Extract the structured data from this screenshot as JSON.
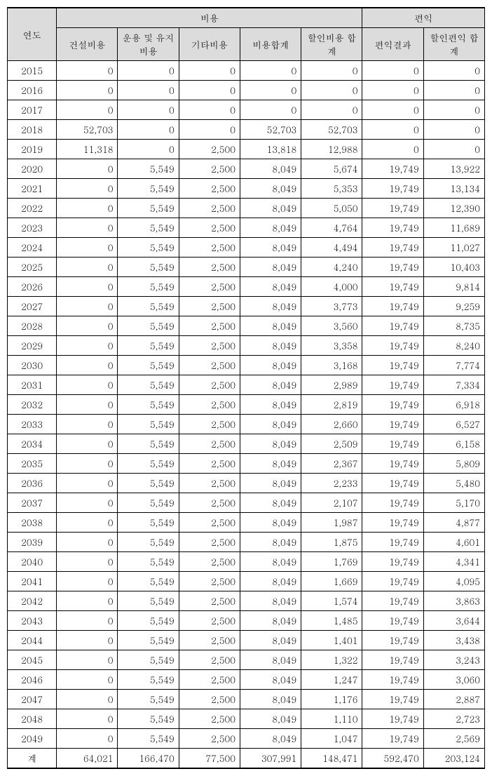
{
  "headers": {
    "year": "연도",
    "cost_group": "비용",
    "benefit_group": "편익",
    "construction": "건설비용",
    "operation": "운용 및 유지비용",
    "other": "기타비용",
    "cost_sum": "비용합계",
    "discount_cost": "할인비용 합계",
    "benefit_result": "편익결과",
    "discount_benefit": "할인편익 합계"
  },
  "rows": [
    {
      "year": "2015",
      "c1": "0",
      "c2": "0",
      "c3": "0",
      "c4": "0",
      "c5": "0",
      "c6": "0",
      "c7": "0"
    },
    {
      "year": "2016",
      "c1": "0",
      "c2": "0",
      "c3": "0",
      "c4": "0",
      "c5": "0",
      "c6": "0",
      "c7": "0"
    },
    {
      "year": "2017",
      "c1": "0",
      "c2": "0",
      "c3": "0",
      "c4": "0",
      "c5": "0",
      "c6": "0",
      "c7": "0"
    },
    {
      "year": "2018",
      "c1": "52,703",
      "c2": "0",
      "c3": "0",
      "c4": "52,703",
      "c5": "52,703",
      "c6": "0",
      "c7": "0"
    },
    {
      "year": "2019",
      "c1": "11,318",
      "c2": "0",
      "c3": "2,500",
      "c4": "13,818",
      "c5": "12,988",
      "c6": "0",
      "c7": "0"
    },
    {
      "year": "2020",
      "c1": "0",
      "c2": "5,549",
      "c3": "2,500",
      "c4": "8,049",
      "c5": "5,674",
      "c6": "19,749",
      "c7": "13,922"
    },
    {
      "year": "2021",
      "c1": "0",
      "c2": "5,549",
      "c3": "2,500",
      "c4": "8,049",
      "c5": "5,353",
      "c6": "19,749",
      "c7": "13,134"
    },
    {
      "year": "2022",
      "c1": "0",
      "c2": "5,549",
      "c3": "2,500",
      "c4": "8,049",
      "c5": "5,050",
      "c6": "19,749",
      "c7": "12,390"
    },
    {
      "year": "2023",
      "c1": "0",
      "c2": "5,549",
      "c3": "2,500",
      "c4": "8,049",
      "c5": "4,764",
      "c6": "19,749",
      "c7": "11,689"
    },
    {
      "year": "2024",
      "c1": "0",
      "c2": "5,549",
      "c3": "2,500",
      "c4": "8,049",
      "c5": "4,494",
      "c6": "19,749",
      "c7": "11,027"
    },
    {
      "year": "2025",
      "c1": "0",
      "c2": "5,549",
      "c3": "2,500",
      "c4": "8,049",
      "c5": "4,240",
      "c6": "19,749",
      "c7": "10,403"
    },
    {
      "year": "2026",
      "c1": "0",
      "c2": "5,549",
      "c3": "2,500",
      "c4": "8,049",
      "c5": "4,000",
      "c6": "19,749",
      "c7": "9,814"
    },
    {
      "year": "2027",
      "c1": "0",
      "c2": "5,549",
      "c3": "2,500",
      "c4": "8,049",
      "c5": "3,773",
      "c6": "19,749",
      "c7": "9,259"
    },
    {
      "year": "2028",
      "c1": "0",
      "c2": "5,549",
      "c3": "2,500",
      "c4": "8,049",
      "c5": "3,560",
      "c6": "19,749",
      "c7": "8,735"
    },
    {
      "year": "2029",
      "c1": "0",
      "c2": "5,549",
      "c3": "2,500",
      "c4": "8,049",
      "c5": "3,358",
      "c6": "19,749",
      "c7": "8,240"
    },
    {
      "year": "2030",
      "c1": "0",
      "c2": "5,549",
      "c3": "2,500",
      "c4": "8,049",
      "c5": "3,168",
      "c6": "19,749",
      "c7": "7,774"
    },
    {
      "year": "2031",
      "c1": "0",
      "c2": "5,549",
      "c3": "2,500",
      "c4": "8,049",
      "c5": "2,989",
      "c6": "19,749",
      "c7": "7,334"
    },
    {
      "year": "2032",
      "c1": "0",
      "c2": "5,549",
      "c3": "2,500",
      "c4": "8,049",
      "c5": "2,819",
      "c6": "19,749",
      "c7": "6,918"
    },
    {
      "year": "2033",
      "c1": "0",
      "c2": "5,549",
      "c3": "2,500",
      "c4": "8,049",
      "c5": "2,660",
      "c6": "19,749",
      "c7": "6,527"
    },
    {
      "year": "2034",
      "c1": "0",
      "c2": "5,549",
      "c3": "2,500",
      "c4": "8,049",
      "c5": "2,509",
      "c6": "19,749",
      "c7": "6,158"
    },
    {
      "year": "2035",
      "c1": "0",
      "c2": "5,549",
      "c3": "2,500",
      "c4": "8,049",
      "c5": "2,367",
      "c6": "19,749",
      "c7": "5,809"
    },
    {
      "year": "2036",
      "c1": "0",
      "c2": "5,549",
      "c3": "2,500",
      "c4": "8,049",
      "c5": "2,233",
      "c6": "19,749",
      "c7": "5,480"
    },
    {
      "year": "2037",
      "c1": "0",
      "c2": "5,549",
      "c3": "2,500",
      "c4": "8,049",
      "c5": "2,107",
      "c6": "19,749",
      "c7": "5,170"
    },
    {
      "year": "2038",
      "c1": "0",
      "c2": "5,549",
      "c3": "2,500",
      "c4": "8,049",
      "c5": "1,987",
      "c6": "19,749",
      "c7": "4,877"
    },
    {
      "year": "2039",
      "c1": "0",
      "c2": "5,549",
      "c3": "2,500",
      "c4": "8,049",
      "c5": "1,875",
      "c6": "19,749",
      "c7": "4,601"
    },
    {
      "year": "2040",
      "c1": "0",
      "c2": "5,549",
      "c3": "2,500",
      "c4": "8,049",
      "c5": "1,769",
      "c6": "19,749",
      "c7": "4,341"
    },
    {
      "year": "2041",
      "c1": "0",
      "c2": "5,549",
      "c3": "2,500",
      "c4": "8,049",
      "c5": "1,669",
      "c6": "19,749",
      "c7": "4,095"
    },
    {
      "year": "2042",
      "c1": "0",
      "c2": "5,549",
      "c3": "2,500",
      "c4": "8,049",
      "c5": "1,574",
      "c6": "19,749",
      "c7": "3,863"
    },
    {
      "year": "2043",
      "c1": "0",
      "c2": "5,549",
      "c3": "2,500",
      "c4": "8,049",
      "c5": "1,485",
      "c6": "19,749",
      "c7": "3,644"
    },
    {
      "year": "2044",
      "c1": "0",
      "c2": "5,549",
      "c3": "2,500",
      "c4": "8,049",
      "c5": "1,401",
      "c6": "19,749",
      "c7": "3,438"
    },
    {
      "year": "2045",
      "c1": "0",
      "c2": "5,549",
      "c3": "2,500",
      "c4": "8,049",
      "c5": "1,322",
      "c6": "19,749",
      "c7": "3,243"
    },
    {
      "year": "2046",
      "c1": "0",
      "c2": "5,549",
      "c3": "2,500",
      "c4": "8,049",
      "c5": "1,247",
      "c6": "19,749",
      "c7": "3,060"
    },
    {
      "year": "2047",
      "c1": "0",
      "c2": "5,549",
      "c3": "2,500",
      "c4": "8,049",
      "c5": "1,176",
      "c6": "19,749",
      "c7": "2,887"
    },
    {
      "year": "2048",
      "c1": "0",
      "c2": "5,549",
      "c3": "2,500",
      "c4": "8,049",
      "c5": "1,110",
      "c6": "19,749",
      "c7": "2,723"
    },
    {
      "year": "2049",
      "c1": "0",
      "c2": "5,549",
      "c3": "2,500",
      "c4": "8,049",
      "c5": "1,047",
      "c6": "19,749",
      "c7": "2,569"
    }
  ],
  "total": {
    "label": "계",
    "c1": "64,021",
    "c2": "166,470",
    "c3": "77,500",
    "c4": "307,991",
    "c5": "148,471",
    "c6": "592,470",
    "c7": "203,124"
  }
}
